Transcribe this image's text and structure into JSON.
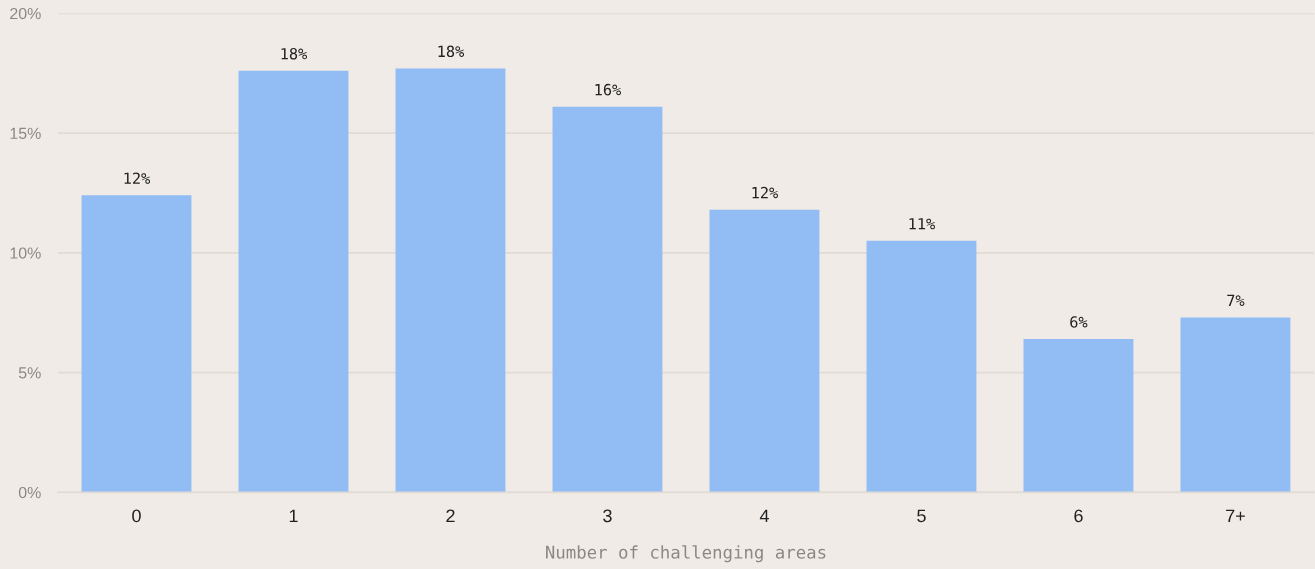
{
  "chart_data": {
    "type": "bar",
    "xlabel": "Number of challenging areas",
    "categories": [
      "0",
      "1",
      "2",
      "3",
      "4",
      "5",
      "6",
      "7+"
    ],
    "values": [
      12.4,
      17.6,
      17.7,
      16.1,
      11.8,
      10.5,
      6.4,
      7.3
    ],
    "value_labels": [
      "12%",
      "18%",
      "18%",
      "16%",
      "12%",
      "11%",
      "6%",
      "7%"
    ],
    "color": "#92bdf4",
    "ylim": [
      0,
      20
    ],
    "yticks": [
      {
        "value": 0,
        "label": "0%"
      },
      {
        "value": 5,
        "label": "5%"
      },
      {
        "value": 10,
        "label": "10%"
      },
      {
        "value": 15,
        "label": "15%"
      },
      {
        "value": 20,
        "label": "20%"
      }
    ],
    "grid": "y",
    "legend": false
  }
}
